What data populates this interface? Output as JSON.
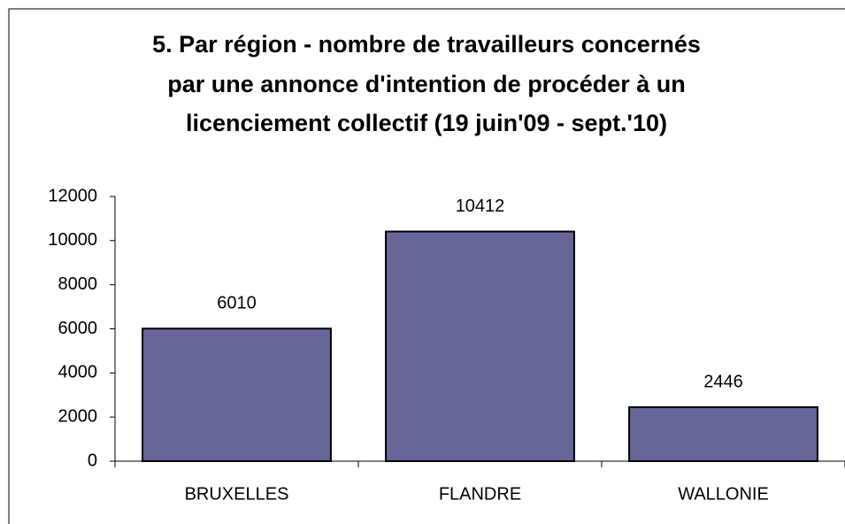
{
  "chart_data": {
    "type": "bar",
    "title": [
      "5. Par région - nombre de travailleurs concernés",
      "par une annonce d'intention de procéder à un",
      "licenciement collectif (19 juin'09 - sept.'10)"
    ],
    "categories": [
      "BRUXELLES",
      "FLANDRE",
      "WALLONIE"
    ],
    "values": [
      6010,
      10412,
      2446
    ],
    "color": "#666699",
    "ylim": [
      0,
      12000
    ],
    "yticks": [
      0,
      2000,
      4000,
      6000,
      8000,
      10000,
      12000
    ],
    "grid": false
  }
}
